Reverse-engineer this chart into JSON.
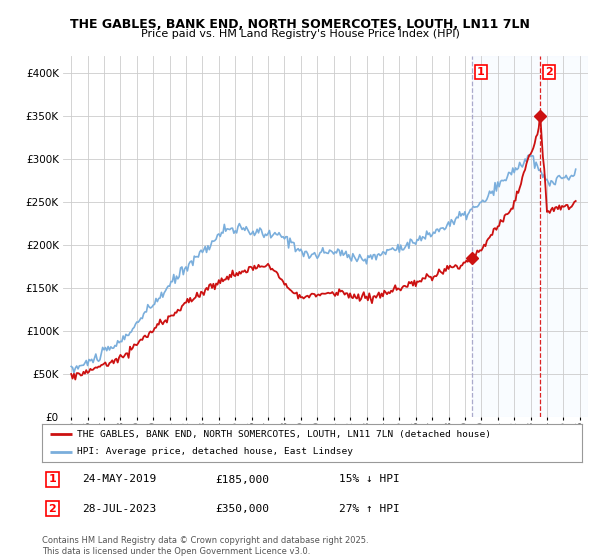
{
  "title": "THE GABLES, BANK END, NORTH SOMERCOTES, LOUTH, LN11 7LN",
  "subtitle": "Price paid vs. HM Land Registry's House Price Index (HPI)",
  "legend_line1": "THE GABLES, BANK END, NORTH SOMERCOTES, LOUTH, LN11 7LN (detached house)",
  "legend_line2": "HPI: Average price, detached house, East Lindsey",
  "transaction1_date": "24-MAY-2019",
  "transaction1_price": "£185,000",
  "transaction1_hpi": "15% ↓ HPI",
  "transaction2_date": "28-JUL-2023",
  "transaction2_price": "£350,000",
  "transaction2_hpi": "27% ↑ HPI",
  "footnote": "Contains HM Land Registry data © Crown copyright and database right 2025.\nThis data is licensed under the Open Government Licence v3.0.",
  "hpi_color": "#7aaedc",
  "price_color": "#cc1111",
  "vline1_color": "#aaaacc",
  "vline2_color": "#dd2222",
  "grid_color": "#cccccc",
  "shade_color": "#ddeeff",
  "bg_color": "#ffffff",
  "t1_year": 2019.4,
  "t2_year": 2023.58,
  "t1_price": 185000,
  "t2_price": 350000,
  "ylim_max": 420000,
  "ylim_min": 0,
  "xlim_min": 1994.5,
  "xlim_max": 2026.5
}
